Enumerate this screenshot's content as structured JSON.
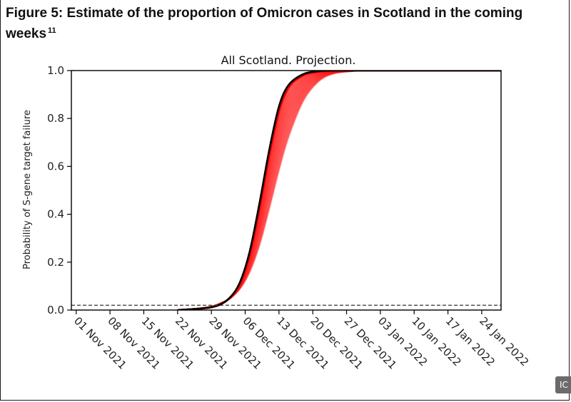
{
  "figure": {
    "title": "Figure 5: Estimate of the proportion of Omicron cases in Scotland in the coming weeks",
    "footnote_ref": "11"
  },
  "badge": {
    "text": "IC"
  },
  "chart_data": {
    "type": "line",
    "title": "All Scotland. Projection.",
    "xlabel": "",
    "ylabel": "Probability of S-gene target failure",
    "x_ticks": [
      "01 Nov 2021",
      "08 Nov 2021",
      "15 Nov 2021",
      "22 Nov 2021",
      "29 Nov 2021",
      "06 Dec 2021",
      "13 Dec 2021",
      "20 Dec 2021",
      "27 Dec 2021",
      "03 Jan 2022",
      "10 Jan 2022",
      "17 Jan 2022",
      "24 Jan 2022"
    ],
    "xlim": [
      "2021-10-31",
      "2022-01-28"
    ],
    "ylim": [
      0,
      1.0
    ],
    "y_ticks": [
      "0.0",
      "0.2",
      "0.4",
      "0.6",
      "0.8",
      "1.0"
    ],
    "grid": false,
    "legend": "none",
    "series": [
      {
        "role": "central-estimate",
        "color": "#000000",
        "x": [
          "2021-11-22",
          "2021-11-26",
          "2021-11-29",
          "2021-12-01",
          "2021-12-03",
          "2021-12-05",
          "2021-12-07",
          "2021-12-09",
          "2021-12-11",
          "2021-12-13",
          "2021-12-15",
          "2021-12-18",
          "2021-12-21",
          "2021-12-24",
          "2021-12-28",
          "2022-01-03",
          "2022-01-28"
        ],
        "y": [
          0.0,
          0.005,
          0.012,
          0.025,
          0.055,
          0.12,
          0.25,
          0.45,
          0.67,
          0.85,
          0.94,
          0.985,
          0.997,
          1.0,
          1.0,
          1.0,
          1.0
        ]
      },
      {
        "role": "projection-range-upper",
        "color": "#ff0000",
        "x": [
          "2021-11-22",
          "2021-11-26",
          "2021-11-29",
          "2021-12-01",
          "2021-12-03",
          "2021-12-05",
          "2021-12-07",
          "2021-12-09",
          "2021-12-11",
          "2021-12-13",
          "2021-12-15",
          "2021-12-18",
          "2021-12-21",
          "2021-12-24",
          "2021-12-28",
          "2022-01-03",
          "2022-01-28"
        ],
        "y": [
          0.0,
          0.005,
          0.012,
          0.025,
          0.055,
          0.115,
          0.24,
          0.43,
          0.65,
          0.83,
          0.93,
          0.98,
          0.995,
          0.999,
          1.0,
          1.0,
          1.0
        ]
      },
      {
        "role": "projection-range-lower",
        "color": "#ff0000",
        "x": [
          "2021-11-22",
          "2021-11-26",
          "2021-11-29",
          "2021-12-01",
          "2021-12-03",
          "2021-12-05",
          "2021-12-07",
          "2021-12-09",
          "2021-12-11",
          "2021-12-13",
          "2021-12-15",
          "2021-12-18",
          "2021-12-21",
          "2021-12-24",
          "2021-12-28",
          "2022-01-03",
          "2022-01-28"
        ],
        "y": [
          0.0,
          0.006,
          0.015,
          0.03,
          0.05,
          0.09,
          0.16,
          0.27,
          0.42,
          0.58,
          0.72,
          0.87,
          0.95,
          0.985,
          0.997,
          1.0,
          1.0
        ]
      }
    ],
    "reference_lines": [
      {
        "orientation": "horizontal",
        "y": 0.02,
        "style": "dashed",
        "color": "#333333"
      }
    ]
  }
}
